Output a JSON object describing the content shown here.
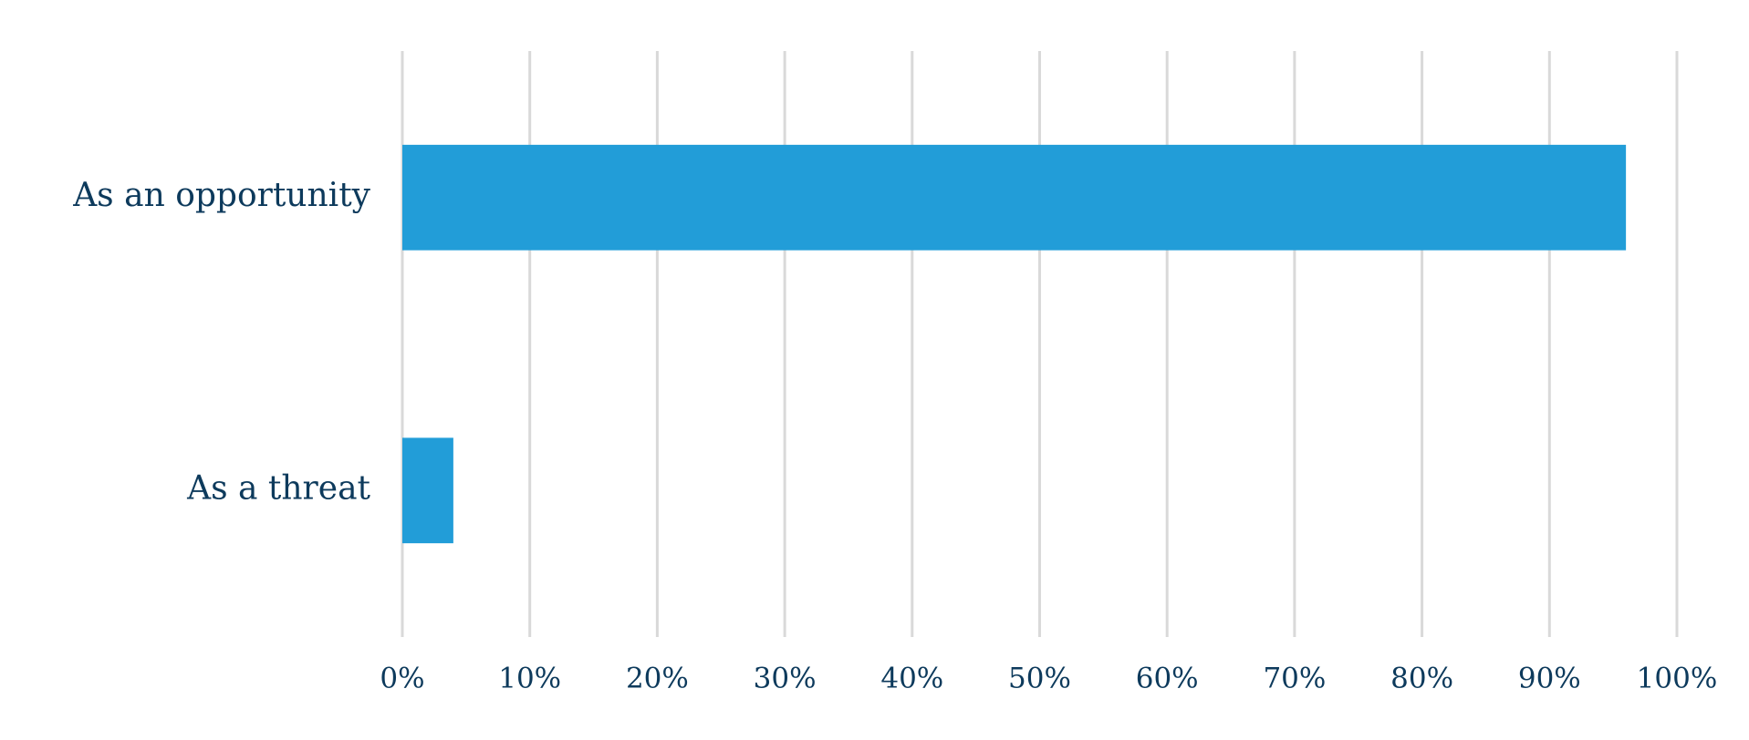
{
  "chart_data": {
    "type": "bar",
    "horizontal": true,
    "categories": [
      "As an opportunity",
      "As a threat"
    ],
    "values": [
      96,
      4
    ],
    "color": "#229dd8",
    "xlim": [
      0,
      100
    ],
    "xticks": [
      {
        "value": 0,
        "label": "0%"
      },
      {
        "value": 10,
        "label": "10%"
      },
      {
        "value": 20,
        "label": "20%"
      },
      {
        "value": 30,
        "label": "30%"
      },
      {
        "value": 40,
        "label": "40%"
      },
      {
        "value": 50,
        "label": "50%"
      },
      {
        "value": 60,
        "label": "60%"
      },
      {
        "value": 70,
        "label": "70%"
      },
      {
        "value": 80,
        "label": "80%"
      },
      {
        "value": 90,
        "label": "90%"
      },
      {
        "value": 100,
        "label": "100%"
      }
    ],
    "grid": true
  }
}
